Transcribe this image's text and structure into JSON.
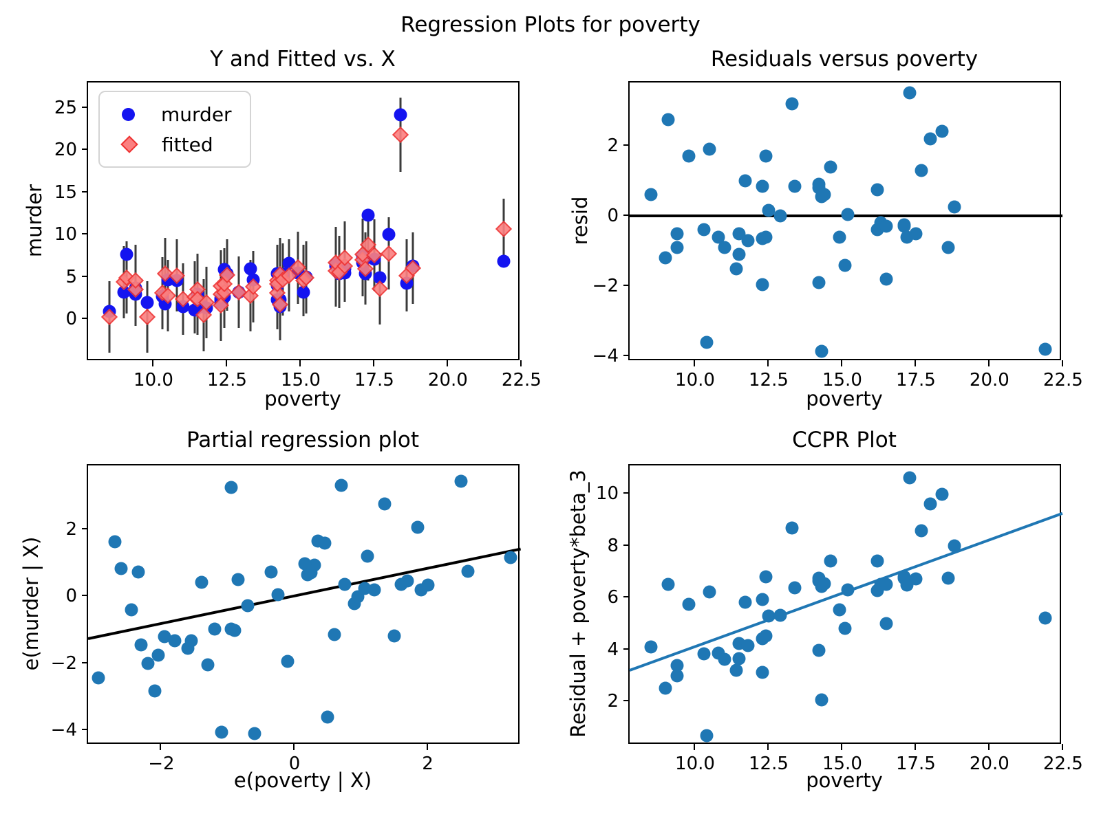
{
  "figure": {
    "title": "Regression Plots for poverty",
    "colors": {
      "murder_marker": "#1414f0",
      "fitted_fill": "#fb8080",
      "fitted_edge": "#ee3333",
      "scatter": "#1f77b4",
      "zero_line": "#000000",
      "fit_line_black": "#000000",
      "fit_line_blue": "#1f77b4",
      "error_bar": "#3b3b3b"
    }
  },
  "chart_data": [
    {
      "type": "scatter",
      "title": "Y and Fitted vs. X",
      "xlabel": "poverty",
      "ylabel": "murder",
      "legend": [
        "murder",
        "fitted"
      ],
      "legend_position": "upper left",
      "grid": false,
      "xlim": [
        7.78,
        22.48
      ],
      "ylim": [
        -5.0,
        28.0
      ],
      "xtick_vals": [
        10.0,
        12.5,
        15.0,
        17.5,
        20.0,
        22.5
      ],
      "xtick_labels": [
        "10.0",
        "12.5",
        "15.0",
        "17.5",
        "20.0",
        "22.5"
      ],
      "ytick_vals": [
        0,
        5,
        10,
        15,
        20,
        25
      ],
      "ytick_labels": [
        "0",
        "5",
        "10",
        "15",
        "20",
        "25"
      ],
      "x": [
        8.5,
        9.0,
        9.1,
        9.4,
        9.4,
        9.8,
        10.3,
        10.4,
        10.5,
        10.8,
        11.0,
        11.4,
        11.5,
        11.5,
        11.7,
        11.8,
        12.3,
        12.3,
        12.3,
        12.4,
        12.4,
        12.5,
        12.9,
        13.3,
        13.4,
        14.2,
        14.2,
        14.2,
        14.3,
        14.3,
        14.4,
        14.6,
        14.9,
        15.1,
        15.2,
        16.2,
        16.2,
        16.3,
        16.5,
        16.5,
        17.1,
        17.1,
        17.2,
        17.3,
        17.5,
        17.7,
        18.0,
        18.4,
        18.6,
        18.8,
        21.9
      ],
      "murder": [
        0.9,
        3.2,
        7.7,
        3.0,
        3.7,
        2.0,
        2.7,
        1.8,
        4.7,
        4.6,
        1.5,
        1.1,
        3.0,
        1.3,
        1.5,
        1.3,
        2.3,
        2.0,
        2.5,
        2.6,
        5.9,
        5.4,
        3.2,
        6.0,
        4.7,
        5.4,
        4.0,
        2.3,
        1.5,
        2.3,
        5.3,
        6.6,
        5.5,
        3.2,
        5.0,
        6.5,
        6.3,
        5.4,
        6.0,
        5.5,
        6.7,
        7.4,
        5.4,
        12.3,
        7.1,
        4.9,
        10.0,
        24.2,
        4.3,
        6.3,
        6.9
      ],
      "fitted": [
        0.3,
        4.4,
        4.95,
        3.5,
        4.6,
        0.3,
        3.1,
        5.4,
        2.8,
        5.2,
        2.4,
        2.6,
        3.5,
        2.4,
        0.5,
        2.0,
        2.95,
        3.95,
        1.65,
        3.2,
        4.2,
        5.25,
        3.2,
        2.8,
        3.85,
        4.6,
        3.1,
        4.2,
        5.35,
        1.75,
        4.7,
        5.2,
        6.1,
        4.6,
        4.95,
        5.75,
        6.7,
        5.6,
        6.3,
        7.3,
        7.0,
        7.65,
        6.0,
        8.8,
        7.6,
        3.6,
        7.8,
        21.8,
        5.2,
        6.05,
        10.7
      ],
      "err_half": [
        4.25,
        4.25,
        4.25,
        4.25,
        4.25,
        4.25,
        4.25,
        4.25,
        4.25,
        4.25,
        4.25,
        4.25,
        4.25,
        4.25,
        4.25,
        4.25,
        4.25,
        4.25,
        4.25,
        4.25,
        4.25,
        4.25,
        4.25,
        4.25,
        4.25,
        4.25,
        4.25,
        4.25,
        4.25,
        4.25,
        4.25,
        4.25,
        4.25,
        4.25,
        4.25,
        4.25,
        4.25,
        4.25,
        4.25,
        4.25,
        4.25,
        4.25,
        4.25,
        4.25,
        4.25,
        4.25,
        4.25,
        4.4,
        4.25,
        4.25,
        3.6
      ]
    },
    {
      "type": "scatter",
      "title": "Residuals versus poverty",
      "xlabel": "poverty",
      "ylabel": "resid",
      "grid": false,
      "xlim": [
        7.78,
        22.48
      ],
      "ylim": [
        -4.15,
        3.8
      ],
      "xtick_vals": [
        10.0,
        12.5,
        15.0,
        17.5,
        20.0,
        22.5
      ],
      "xtick_labels": [
        "10.0",
        "12.5",
        "15.0",
        "17.5",
        "20.0",
        "22.5"
      ],
      "ytick_vals": [
        -4,
        -2,
        0,
        2
      ],
      "ytick_labels": [
        "−4",
        "−2",
        "0",
        "2"
      ],
      "x": [
        8.5,
        9.0,
        9.1,
        9.4,
        9.4,
        9.8,
        10.3,
        10.4,
        10.5,
        10.8,
        11.0,
        11.4,
        11.5,
        11.5,
        11.7,
        11.8,
        12.3,
        12.3,
        12.3,
        12.4,
        12.4,
        12.5,
        12.9,
        13.3,
        13.4,
        14.2,
        14.2,
        14.2,
        14.3,
        14.3,
        14.4,
        14.6,
        14.9,
        15.1,
        15.2,
        16.2,
        16.2,
        16.3,
        16.5,
        16.5,
        17.1,
        17.1,
        17.2,
        17.3,
        17.5,
        17.7,
        18.0,
        18.4,
        18.6,
        18.8,
        21.9
      ],
      "y": [
        0.6,
        -1.2,
        2.75,
        -0.5,
        -0.9,
        1.7,
        -0.4,
        -3.6,
        1.9,
        -0.6,
        -0.9,
        -1.5,
        -0.5,
        -1.1,
        1.0,
        -0.7,
        -0.65,
        -1.95,
        0.85,
        -0.6,
        1.7,
        0.15,
        0.0,
        3.2,
        0.85,
        0.8,
        0.9,
        -1.9,
        -3.85,
        0.55,
        0.6,
        1.4,
        -0.6,
        -1.4,
        0.05,
        0.75,
        -0.4,
        -0.2,
        -0.3,
        -1.8,
        -0.3,
        -0.25,
        -0.6,
        3.5,
        -0.5,
        1.3,
        2.2,
        2.4,
        -0.9,
        0.25,
        -3.8
      ],
      "line": {
        "x1": 7.78,
        "y1": 0,
        "x2": 22.48,
        "y2": 0,
        "color": "zero_line",
        "width": 4
      }
    },
    {
      "type": "scatter",
      "title": "Partial regression plot",
      "xlabel": "e(poverty | X)",
      "ylabel": "e(murder | X)",
      "grid": false,
      "xlim": [
        -3.1,
        3.4
      ],
      "ylim": [
        -4.45,
        3.9
      ],
      "xtick_vals": [
        -2,
        0,
        2
      ],
      "xtick_labels": [
        "−2",
        "0",
        "2"
      ],
      "ytick_vals": [
        -4,
        -2,
        0,
        2
      ],
      "ytick_labels": [
        "−4",
        "−2",
        "0",
        "2"
      ],
      "x": [
        -2.45,
        -2.95,
        -2.7,
        -2.3,
        -2.05,
        -2.35,
        -1.95,
        -1.1,
        -2.6,
        -1.8,
        -1.6,
        -1.3,
        -1.2,
        -2.2,
        -1.4,
        -1.55,
        -0.9,
        -2.1,
        -0.85,
        -0.95,
        0.35,
        -0.25,
        -0.7,
        -0.95,
        -0.35,
        0.3,
        0.15,
        -0.1,
        -0.6,
        0.2,
        0.25,
        0.45,
        0.9,
        0.6,
        0.75,
        1.1,
        0.95,
        1.05,
        1.2,
        1.5,
        1.6,
        1.7,
        1.9,
        0.7,
        2.0,
        1.85,
        1.35,
        2.5,
        2.6,
        3.25,
        0.5
      ],
      "y": [
        -0.41,
        -2.44,
        1.62,
        -1.45,
        -1.77,
        0.73,
        -1.2,
        -4.05,
        0.83,
        -1.34,
        -1.56,
        -2.04,
        -0.99,
        -2.01,
        0.42,
        -1.34,
        -1.02,
        -2.82,
        0.5,
        -0.99,
        1.65,
        0.05,
        -0.29,
        3.25,
        0.71,
        0.92,
        0.96,
        -1.94,
        -4.1,
        0.63,
        0.7,
        1.59,
        -0.23,
        -1.15,
        0.36,
        1.2,
        -0.01,
        0.23,
        0.19,
        -1.18,
        0.36,
        0.45,
        0.18,
        3.3,
        0.32,
        2.06,
        2.76,
        3.43,
        0.75,
        1.15,
        -3.6
      ],
      "line": {
        "x1": -3.1,
        "y1": -1.277,
        "x2": 3.4,
        "y2": 1.401,
        "color": "fit_line_black",
        "width": 4
      }
    },
    {
      "type": "scatter",
      "title": "CCPR Plot",
      "xlabel": "poverty",
      "ylabel": "Residual + poverty*beta_3",
      "grid": false,
      "xlim": [
        7.78,
        22.48
      ],
      "ylim": [
        0.3,
        11.1
      ],
      "xtick_vals": [
        10.0,
        12.5,
        15.0,
        17.5,
        20.0,
        22.5
      ],
      "xtick_labels": [
        "10.0",
        "12.5",
        "15.0",
        "17.5",
        "20.0",
        "22.5"
      ],
      "ytick_vals": [
        2,
        4,
        6,
        8,
        10
      ],
      "ytick_labels": [
        "2",
        "4",
        "6",
        "8",
        "10"
      ],
      "x": [
        8.5,
        9.0,
        9.1,
        9.4,
        9.4,
        9.8,
        10.3,
        10.4,
        10.5,
        10.8,
        11.0,
        11.4,
        11.5,
        11.5,
        11.7,
        11.8,
        12.3,
        12.3,
        12.3,
        12.4,
        12.4,
        12.5,
        12.9,
        13.3,
        13.4,
        14.2,
        14.2,
        14.2,
        14.3,
        14.3,
        14.4,
        14.6,
        14.9,
        15.1,
        15.2,
        16.2,
        16.2,
        16.3,
        16.5,
        16.5,
        17.1,
        17.1,
        17.2,
        17.3,
        17.5,
        17.7,
        18.0,
        18.4,
        18.6,
        18.8,
        21.9
      ],
      "y": [
        4.1,
        2.51,
        6.5,
        3.37,
        2.97,
        5.74,
        3.84,
        0.68,
        6.23,
        3.85,
        3.63,
        3.2,
        4.24,
        3.64,
        5.82,
        4.16,
        4.42,
        3.12,
        5.92,
        4.51,
        6.81,
        5.3,
        5.31,
        8.68,
        6.37,
        6.65,
        6.75,
        3.95,
        2.04,
        6.44,
        6.53,
        7.42,
        5.54,
        4.82,
        6.31,
        7.42,
        6.27,
        6.52,
        6.5,
        5.0,
        6.75,
        6.8,
        6.49,
        10.63,
        6.71,
        8.59,
        9.62,
        9.98,
        6.76,
        8.0,
        5.22
      ],
      "line": {
        "x1": 7.78,
        "y1": 3.205,
        "x2": 22.48,
        "y2": 9.262,
        "color": "fit_line_blue",
        "width": 4
      }
    }
  ]
}
